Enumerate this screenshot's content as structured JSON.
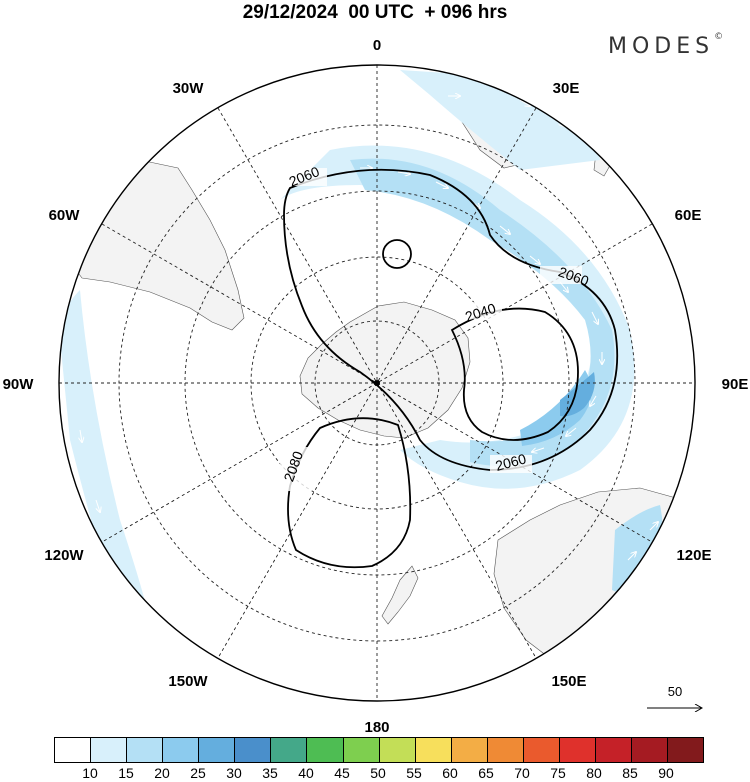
{
  "title": "29/12/2024  00 UTC  + 096 hrs",
  "brand": "MODES",
  "brand_mark": "©",
  "longitudes": {
    "n": "0",
    "ne30": "30E",
    "ne60": "60E",
    "e": "90E",
    "se120": "120E",
    "se150": "150E",
    "s": "180",
    "sw150": "150W",
    "sw120": "120W",
    "w": "90W",
    "nw60": "60W",
    "nw30": "30W"
  },
  "contours": {
    "c2040": "2040",
    "c2060a": "2060",
    "c2060b": "2060",
    "c2060c": "2060",
    "c2080": "2080"
  },
  "reference_vector": {
    "value": "50"
  },
  "colorbar": {
    "ticks": [
      "10",
      "15",
      "20",
      "25",
      "30",
      "35",
      "40",
      "45",
      "50",
      "55",
      "60",
      "65",
      "70",
      "75",
      "80",
      "85",
      "90"
    ],
    "colors": [
      "#ffffff",
      "#d8f0fb",
      "#b4e0f5",
      "#8ccbee",
      "#64aede",
      "#4a8fcb",
      "#44a889",
      "#4ebd53",
      "#7ecf4f",
      "#c3de57",
      "#f7df5c",
      "#f3ad45",
      "#ef8a35",
      "#ea5a2d",
      "#df312c",
      "#c52128",
      "#a51b22",
      "#821a1c"
    ]
  }
}
